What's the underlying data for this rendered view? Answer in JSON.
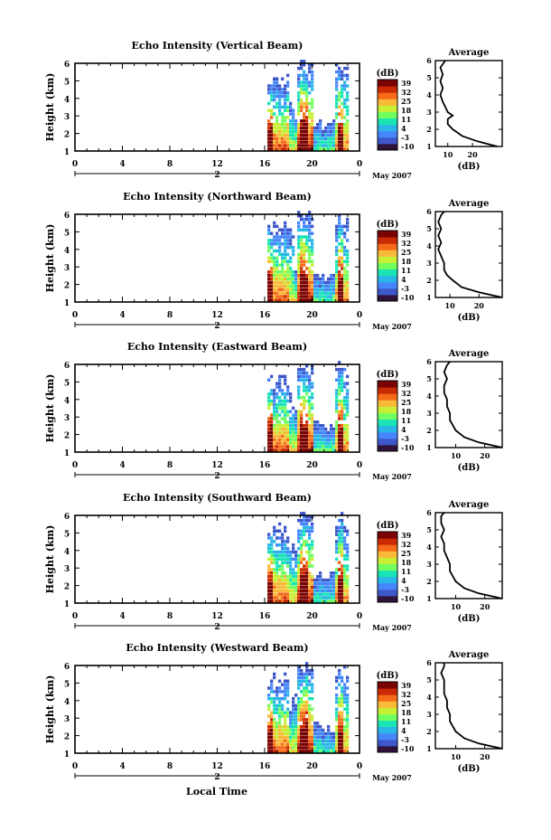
{
  "colorbar": {
    "unit": "(dB)",
    "ticks": [
      "39",
      "32",
      "25",
      "18",
      "11",
      "4",
      "-3",
      "-10"
    ],
    "colors": [
      "#30123b",
      "#3e57c9",
      "#4686fb",
      "#2ab7e8",
      "#1ae4b6",
      "#71fe5f",
      "#c8ef34",
      "#faba39",
      "#f66b19",
      "#ca2a04",
      "#7a0403"
    ]
  },
  "shared": {
    "date_label": "May 2007",
    "x_axis_title": "Local Time",
    "y_axis_title": "Height (km)",
    "avg_title": "Average",
    "avg_xlabel": "(dB)"
  },
  "chart_data": [
    {
      "type": "heatmap",
      "title": "Echo Intensity (Vertical Beam)",
      "ylabel": "Height (km)",
      "xlabel": "Local Time",
      "x_ticks": [
        "0",
        "4",
        "8",
        "12",
        "16",
        "20",
        "0"
      ],
      "x_range": [
        0,
        24
      ],
      "y_ticks": [
        "1",
        "2",
        "3",
        "4",
        "5",
        "6"
      ],
      "y_range": [
        1,
        6
      ],
      "date_marker": "2",
      "date_label": "May 2007",
      "colorbar_range_db": [
        -10,
        39
      ],
      "average_profile": {
        "title": "Average",
        "xlabel": "(dB)",
        "x_ticks": [
          "10",
          "20"
        ],
        "xlim": [
          5,
          32
        ],
        "height_km": [
          1.0,
          1.3,
          1.6,
          2.0,
          2.3,
          2.6,
          2.8,
          3.0,
          3.3,
          3.6,
          4.0,
          4.4,
          4.8,
          5.2,
          5.6,
          6.0
        ],
        "db": [
          30,
          22,
          16,
          12,
          10,
          10,
          12,
          10,
          9,
          8,
          7,
          8,
          7,
          8,
          7,
          9
        ]
      }
    },
    {
      "type": "heatmap",
      "title": "Echo Intensity (Northward Beam)",
      "ylabel": "Height (km)",
      "xlabel": "Local Time",
      "x_ticks": [
        "0",
        "4",
        "8",
        "12",
        "16",
        "20",
        "0"
      ],
      "x_range": [
        0,
        24
      ],
      "y_ticks": [
        "1",
        "2",
        "3",
        "4",
        "5",
        "6"
      ],
      "y_range": [
        1,
        6
      ],
      "date_marker": "2",
      "date_label": "May 2007",
      "colorbar_range_db": [
        -10,
        39
      ],
      "average_profile": {
        "title": "Average",
        "xlabel": "(dB)",
        "x_ticks": [
          "10",
          "20"
        ],
        "xlim": [
          5,
          28
        ],
        "height_km": [
          1.0,
          1.3,
          1.6,
          2.0,
          2.3,
          2.6,
          3.0,
          3.4,
          3.8,
          4.2,
          4.6,
          5.0,
          5.4,
          5.8,
          6.0
        ],
        "db": [
          28,
          20,
          14,
          11,
          9,
          8,
          8,
          7,
          6,
          7,
          6,
          7,
          6,
          7,
          8
        ]
      }
    },
    {
      "type": "heatmap",
      "title": "Echo Intensity (Eastward Beam)",
      "ylabel": "Height (km)",
      "xlabel": "Local Time",
      "x_ticks": [
        "0",
        "4",
        "8",
        "12",
        "16",
        "20",
        "0"
      ],
      "x_range": [
        0,
        24
      ],
      "y_ticks": [
        "1",
        "2",
        "3",
        "4",
        "5",
        "6"
      ],
      "y_range": [
        1,
        6
      ],
      "date_marker": "2",
      "date_label": "May 2007",
      "colorbar_range_db": [
        -10,
        39
      ],
      "average_profile": {
        "title": "Average",
        "xlabel": "(dB)",
        "x_ticks": [
          "10",
          "20"
        ],
        "xlim": [
          3,
          26
        ],
        "height_km": [
          1.0,
          1.3,
          1.6,
          2.0,
          2.3,
          2.6,
          3.0,
          3.4,
          3.8,
          4.2,
          4.6,
          5.0,
          5.4,
          5.8,
          6.0
        ],
        "db": [
          26,
          18,
          13,
          10,
          9,
          8,
          8,
          7,
          7,
          6,
          6,
          7,
          6,
          7,
          8
        ]
      }
    },
    {
      "type": "heatmap",
      "title": "Echo Intensity (Southward Beam)",
      "ylabel": "Height (km)",
      "xlabel": "Local Time",
      "x_ticks": [
        "0",
        "4",
        "8",
        "12",
        "16",
        "20",
        "0"
      ],
      "x_range": [
        0,
        24
      ],
      "y_ticks": [
        "1",
        "2",
        "3",
        "4",
        "5",
        "6"
      ],
      "y_range": [
        1,
        6
      ],
      "date_marker": "2",
      "date_label": "May 2007",
      "colorbar_range_db": [
        -10,
        39
      ],
      "average_profile": {
        "title": "Average",
        "xlabel": "(dB)",
        "x_ticks": [
          "10",
          "20"
        ],
        "xlim": [
          3,
          26
        ],
        "height_km": [
          1.0,
          1.3,
          1.6,
          2.0,
          2.3,
          2.6,
          3.0,
          3.4,
          3.8,
          4.2,
          4.6,
          5.0,
          5.4,
          5.8,
          6.0
        ],
        "db": [
          26,
          18,
          13,
          10,
          9,
          8,
          8,
          7,
          6,
          6,
          5,
          6,
          5,
          5,
          6
        ]
      }
    },
    {
      "type": "heatmap",
      "title": "Echo Intensity (Westward Beam)",
      "ylabel": "Height (km)",
      "xlabel": "Local Time",
      "x_ticks": [
        "0",
        "4",
        "8",
        "12",
        "16",
        "20",
        "0"
      ],
      "x_range": [
        0,
        24
      ],
      "y_ticks": [
        "1",
        "2",
        "3",
        "4",
        "5",
        "6"
      ],
      "y_range": [
        1,
        6
      ],
      "date_marker": "2",
      "date_label": "May 2007",
      "colorbar_range_db": [
        -10,
        39
      ],
      "average_profile": {
        "title": "Average",
        "xlabel": "(dB)",
        "x_ticks": [
          "10",
          "20"
        ],
        "xlim": [
          3,
          26
        ],
        "height_km": [
          1.0,
          1.3,
          1.6,
          2.0,
          2.3,
          2.6,
          3.0,
          3.4,
          3.8,
          4.2,
          4.6,
          5.0,
          5.4,
          5.8,
          6.0
        ],
        "db": [
          26,
          18,
          13,
          10,
          9,
          8,
          8,
          7,
          7,
          6,
          6,
          6,
          5,
          6,
          6
        ]
      }
    }
  ]
}
